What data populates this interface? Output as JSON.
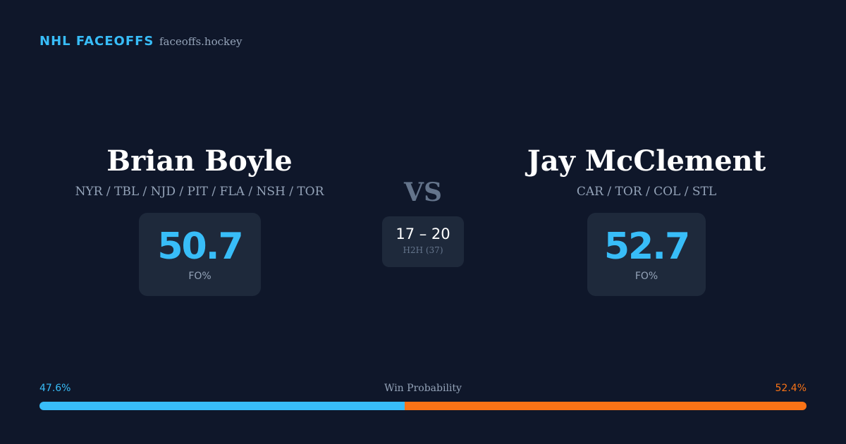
{
  "header": {
    "brand": "NHL FACEOFFS",
    "site": "faceoffs.hockey"
  },
  "players": [
    {
      "name": "Brian Boyle",
      "teams": "NYR / TBL / NJD / PIT / FLA / NSH / TOR",
      "fo_pct": 50.7,
      "fo_label": "FO%"
    },
    {
      "name": "Jay McClement",
      "teams": "CAR / TOR / COL / STL",
      "fo_pct": 52.7,
      "fo_label": "FO%"
    }
  ],
  "vs": "VS",
  "h2h": {
    "score": "17 – 20",
    "label": "H2H (37)"
  },
  "win_probability": {
    "title": "Win Probability",
    "left": {
      "value": 47.6,
      "label": "47.6%",
      "color": "#38bdf8"
    },
    "right": {
      "value": 52.4,
      "label": "52.4%",
      "color": "#f97316"
    }
  }
}
